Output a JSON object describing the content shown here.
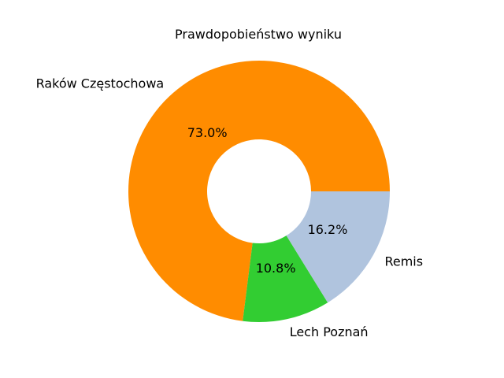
{
  "chart_data": {
    "type": "pie",
    "variant": "donut",
    "title": "Prawdopobieństwo wyniku",
    "categories": [
      "Raków Częstochowa",
      "Lech Poznań",
      "Remis"
    ],
    "values": [
      73.0,
      10.8,
      16.2
    ],
    "percent_labels": [
      "73.0%",
      "10.8%",
      "16.2%"
    ],
    "colors": [
      "#ff8c00",
      "#32cd32",
      "#b0c4de"
    ],
    "start_angle_deg": 0,
    "direction": "counterclockwise",
    "legend": "none"
  }
}
